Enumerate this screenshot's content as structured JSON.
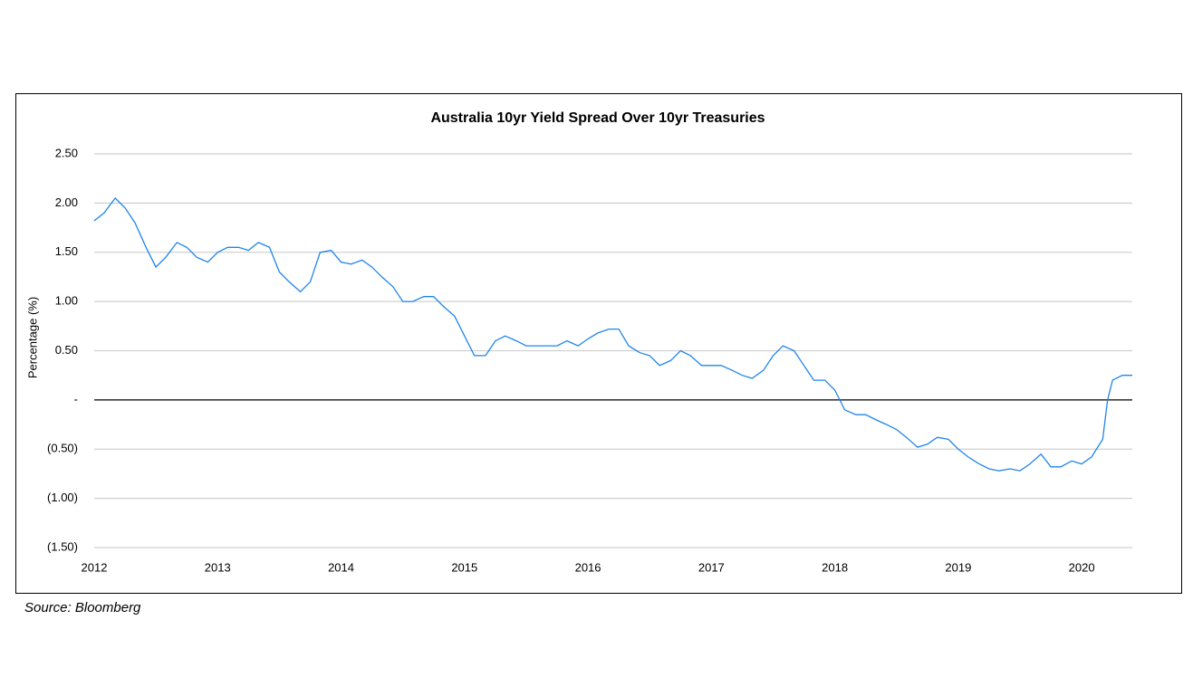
{
  "chart_data": {
    "type": "line",
    "title": "Australia 10yr Yield Spread Over 10yr Treasuries",
    "y_label": "Percentage (%)",
    "source": "Source: Bloomberg",
    "color": "#1f85ea",
    "x": [
      2012.0,
      2012.08,
      2012.17,
      2012.25,
      2012.33,
      2012.42,
      2012.5,
      2012.58,
      2012.67,
      2012.75,
      2012.83,
      2012.92,
      2013.0,
      2013.08,
      2013.17,
      2013.25,
      2013.33,
      2013.42,
      2013.5,
      2013.58,
      2013.67,
      2013.75,
      2013.83,
      2013.92,
      2014.0,
      2014.08,
      2014.17,
      2014.25,
      2014.33,
      2014.42,
      2014.5,
      2014.58,
      2014.67,
      2014.75,
      2014.83,
      2014.92,
      2015.0,
      2015.08,
      2015.17,
      2015.25,
      2015.33,
      2015.42,
      2015.5,
      2015.58,
      2015.67,
      2015.75,
      2015.83,
      2015.92,
      2016.0,
      2016.08,
      2016.17,
      2016.25,
      2016.33,
      2016.42,
      2016.5,
      2016.58,
      2016.67,
      2016.75,
      2016.83,
      2016.92,
      2017.0,
      2017.08,
      2017.17,
      2017.25,
      2017.33,
      2017.42,
      2017.5,
      2017.58,
      2017.67,
      2017.75,
      2017.83,
      2017.92,
      2018.0,
      2018.08,
      2018.17,
      2018.25,
      2018.33,
      2018.42,
      2018.5,
      2018.58,
      2018.67,
      2018.75,
      2018.83,
      2018.92,
      2019.0,
      2019.08,
      2019.17,
      2019.25,
      2019.33,
      2019.42,
      2019.5,
      2019.58,
      2019.67,
      2019.75,
      2019.83,
      2019.92,
      2020.0,
      2020.08,
      2020.17,
      2020.21,
      2020.25,
      2020.33,
      2020.41
    ],
    "values": [
      1.82,
      1.9,
      2.05,
      1.95,
      1.8,
      1.55,
      1.35,
      1.45,
      1.6,
      1.55,
      1.45,
      1.4,
      1.5,
      1.55,
      1.55,
      1.52,
      1.6,
      1.55,
      1.3,
      1.2,
      1.1,
      1.2,
      1.5,
      1.52,
      1.4,
      1.38,
      1.42,
      1.35,
      1.25,
      1.15,
      1.0,
      1.0,
      1.05,
      1.05,
      0.95,
      0.85,
      0.65,
      0.45,
      0.45,
      0.6,
      0.65,
      0.6,
      0.55,
      0.55,
      0.55,
      0.55,
      0.6,
      0.55,
      0.62,
      0.68,
      0.72,
      0.72,
      0.55,
      0.48,
      0.45,
      0.35,
      0.4,
      0.5,
      0.45,
      0.35,
      0.35,
      0.35,
      0.3,
      0.25,
      0.22,
      0.3,
      0.45,
      0.55,
      0.5,
      0.35,
      0.2,
      0.2,
      0.1,
      -0.1,
      -0.15,
      -0.15,
      -0.2,
      -0.25,
      -0.3,
      -0.38,
      -0.48,
      -0.45,
      -0.38,
      -0.4,
      -0.5,
      -0.58,
      -0.65,
      -0.7,
      -0.72,
      -0.7,
      -0.72,
      -0.65,
      -0.55,
      -0.68,
      -0.68,
      -0.62,
      -0.65,
      -0.58,
      -0.4,
      0.0,
      0.2,
      0.25,
      0.25
    ],
    "xlim": [
      2012,
      2020.41
    ],
    "xticks": [
      2012,
      2013,
      2014,
      2015,
      2016,
      2017,
      2018,
      2019,
      2020
    ],
    "ylim": [
      -1.5,
      2.5
    ],
    "yticks": [
      {
        "value": 2.5,
        "label": "2.50"
      },
      {
        "value": 2,
        "label": "2.00"
      },
      {
        "value": 1.5,
        "label": "1.50"
      },
      {
        "value": 1,
        "label": "1.00"
      },
      {
        "value": 0.5,
        "label": "0.50"
      },
      {
        "value": 0,
        "label": "-"
      },
      {
        "value": -0.5,
        "label": "(0.50)"
      },
      {
        "value": -1,
        "label": "(1.00)"
      },
      {
        "value": -1.5,
        "label": "(1.50)"
      }
    ],
    "grid": true
  }
}
